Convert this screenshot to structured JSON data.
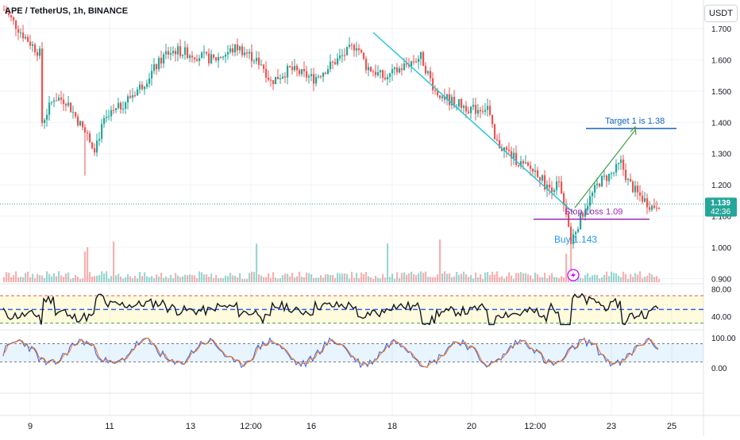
{
  "header": {
    "symbol_title": "APE / TetherUS, 1h, BINANCE",
    "currency_label": "USDT"
  },
  "price_badge": {
    "price": "1.139",
    "countdown": "42:36"
  },
  "annotations": {
    "target_label": "Target 1 is 1.38",
    "stop_label": "Stop Loss 1.09",
    "buy_label": "Buy 1.143"
  },
  "colors": {
    "up": "#26a69a",
    "down": "#ef5350",
    "trendline": "#26c6da",
    "target": "#1565c0",
    "stop": "#9c27b0",
    "arrow": "#43a047",
    "rsi_line": "#131722",
    "stoch_k": "#2962ff",
    "stoch_d": "#ff6d00",
    "badge": "#26a69a",
    "lightning": "#d500f9"
  },
  "chart_data": [
    {
      "type": "candlestick",
      "name": "price",
      "x_ticks": [
        "9",
        "11",
        "13",
        "12:00",
        "16",
        "18",
        "20",
        "12:00",
        "23",
        "25"
      ],
      "y_ticks": [
        "1.700",
        "1.600",
        "1.500",
        "1.400",
        "1.300",
        "1.200",
        "1.100",
        "1.000",
        "0.900"
      ],
      "ylim": [
        0.9,
        1.72
      ],
      "x_points_approx": [
        [
          0,
          1.76
        ],
        [
          8,
          1.68
        ],
        [
          15,
          1.62
        ],
        [
          16,
          1.4
        ],
        [
          21,
          1.48
        ],
        [
          26,
          1.47
        ],
        [
          33,
          1.38
        ],
        [
          38,
          1.32
        ],
        [
          42,
          1.4
        ],
        [
          50,
          1.46
        ],
        [
          58,
          1.52
        ],
        [
          68,
          1.62
        ],
        [
          72,
          1.63
        ],
        [
          78,
          1.62
        ],
        [
          88,
          1.6
        ],
        [
          98,
          1.64
        ],
        [
          108,
          1.59
        ],
        [
          112,
          1.53
        ],
        [
          120,
          1.57
        ],
        [
          130,
          1.54
        ],
        [
          140,
          1.6
        ],
        [
          148,
          1.65
        ],
        [
          152,
          1.58
        ],
        [
          160,
          1.54
        ],
        [
          170,
          1.59
        ],
        [
          175,
          1.61
        ],
        [
          181,
          1.5
        ],
        [
          187,
          1.47
        ],
        [
          197,
          1.44
        ],
        [
          203,
          1.45
        ],
        [
          206,
          1.34
        ],
        [
          212,
          1.3
        ],
        [
          218,
          1.26
        ],
        [
          224,
          1.24
        ],
        [
          228,
          1.19
        ],
        [
          233,
          1.2
        ],
        [
          236,
          1.09
        ],
        [
          238,
          1.02
        ],
        [
          244,
          1.13
        ],
        [
          250,
          1.21
        ],
        [
          256,
          1.24
        ],
        [
          259,
          1.27
        ],
        [
          262,
          1.21
        ],
        [
          266,
          1.17
        ],
        [
          272,
          1.13
        ],
        [
          275,
          1.14
        ]
      ],
      "trendline": [
        [
          1.69,
          "start"
        ],
        [
          1.13,
          "end"
        ]
      ],
      "stop_loss": 1.09,
      "buy": 1.143,
      "target": 1.38,
      "current_price": 1.139
    },
    {
      "type": "line",
      "name": "rsi",
      "y_ticks": [
        "80.00",
        "40.00"
      ],
      "ylim": [
        25,
        85
      ],
      "bands": [
        30,
        50,
        70
      ]
    },
    {
      "type": "line",
      "name": "stochastic",
      "y_ticks": [
        "100.00",
        "0.00"
      ],
      "ylim": [
        -10,
        115
      ],
      "bands": [
        20,
        80
      ]
    }
  ]
}
